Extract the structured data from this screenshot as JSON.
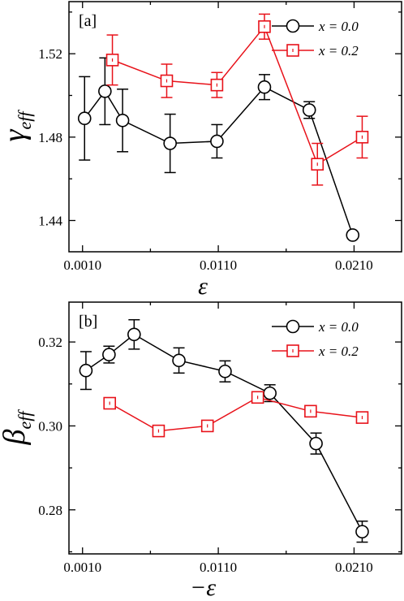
{
  "chart_data": [
    {
      "type": "line",
      "panel_label": "[a]",
      "xlabel": "ε",
      "ylabel_main": "γ",
      "ylabel_sub": "eff",
      "xlim": [
        0.0,
        0.0245
      ],
      "ylim": [
        1.425,
        1.545
      ],
      "x_ticks": [
        0.001,
        0.011,
        0.021
      ],
      "x_tick_labels": [
        "0.0010",
        "0.0110",
        "0.0210"
      ],
      "y_ticks": [
        1.44,
        1.48,
        1.52
      ],
      "y_tick_labels": [
        "1.44",
        "1.48",
        "1.52"
      ],
      "legend_position": "top-right",
      "series": [
        {
          "name": "x = 0.0",
          "color": "#000000",
          "marker": "circle",
          "x": [
            0.00115,
            0.00265,
            0.00395,
            0.00745,
            0.0109,
            0.0144,
            0.0177,
            0.0209
          ],
          "y": [
            1.489,
            1.502,
            1.488,
            1.477,
            1.478,
            1.504,
            1.493,
            1.433
          ],
          "err": [
            0.02,
            0.016,
            0.015,
            0.014,
            0.008,
            0.006,
            0.004,
            0.0
          ]
        },
        {
          "name": "x = 0.2",
          "color": "#e8121a",
          "marker": "square",
          "x": [
            0.0032,
            0.0072,
            0.0109,
            0.0144,
            0.0183,
            0.0216
          ],
          "y": [
            1.517,
            1.507,
            1.505,
            1.533,
            1.467,
            1.48
          ],
          "err": [
            0.012,
            0.008,
            0.006,
            0.006,
            0.01,
            0.01
          ]
        }
      ]
    },
    {
      "type": "line",
      "panel_label": "[b]",
      "xlabel": "−ε",
      "ylabel_main": "β",
      "ylabel_sub": "eff",
      "xlim": [
        0.0,
        0.0245
      ],
      "ylim": [
        0.2695,
        0.3295
      ],
      "x_ticks": [
        0.001,
        0.011,
        0.021
      ],
      "x_tick_labels": [
        "0.0010",
        "0.0110",
        "0.0210"
      ],
      "y_ticks": [
        0.28,
        0.3,
        0.32
      ],
      "y_tick_labels": [
        "0.28",
        "0.30",
        "0.32"
      ],
      "legend_position": "top-right",
      "series": [
        {
          "name": "x = 0.0",
          "color": "#000000",
          "marker": "circle",
          "x": [
            0.00125,
            0.00295,
            0.0048,
            0.0081,
            0.0115,
            0.0148,
            0.0182,
            0.0216
          ],
          "y": [
            0.3132,
            0.317,
            0.3218,
            0.3156,
            0.313,
            0.3078,
            0.2958,
            0.2748
          ],
          "err": [
            0.0045,
            0.002,
            0.0035,
            0.003,
            0.0025,
            0.002,
            0.0025,
            0.0025
          ]
        },
        {
          "name": "x = 0.2",
          "color": "#e8121a",
          "marker": "square",
          "x": [
            0.003,
            0.0066,
            0.0102,
            0.0139,
            0.0178,
            0.0216
          ],
          "y": [
            0.3054,
            0.2988,
            0.3,
            0.3068,
            0.3035,
            0.302
          ],
          "err": [
            0.0,
            0.0,
            0.0,
            0.0,
            0.0,
            0.0
          ]
        }
      ]
    }
  ]
}
